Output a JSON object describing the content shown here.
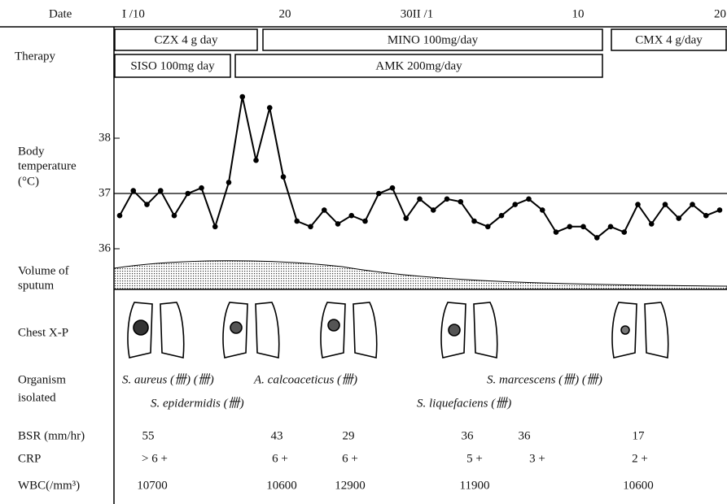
{
  "labels": {
    "date": "Date",
    "therapy": "Therapy",
    "body_temperature": [
      "Body",
      "temperature",
      "(°C)"
    ],
    "sputum": [
      "Volume of",
      "sputum"
    ],
    "chest": "Chest X-P",
    "organism": [
      "Organism",
      "isolated"
    ],
    "bsr": "BSR (mm/hr)",
    "crp": "CRP",
    "wbc": "WBC(/mm³)"
  },
  "dates": [
    "I /10",
    "20",
    "30II /1",
    "10",
    "20"
  ],
  "therapy": [
    "CZX 4 g day",
    "MINO 100mg/day",
    "CMX 4 g/day",
    "SISO 100mg day",
    "AMK 200mg/day"
  ],
  "organisms": [
    "S. aureus (卌) (卌)",
    "A. calcoaceticus (卌)",
    "S. marcescens (卌) (卌)",
    "S. epidermidis (卌)",
    "S. liquefaciens (卌)"
  ],
  "bsr": [
    55,
    43,
    29,
    36,
    36,
    17
  ],
  "crp": [
    "> 6 +",
    "6 +",
    "6 +",
    "5 +",
    "3 +",
    "2 +"
  ],
  "wbc": [
    10700,
    10600,
    12900,
    11900,
    10600
  ],
  "chart_data": {
    "type": "line",
    "categories": [
      null,
      null,
      null,
      null,
      null,
      null,
      null,
      null,
      null,
      null,
      null,
      null,
      null,
      null,
      null,
      null,
      null,
      null,
      null,
      null,
      null,
      null,
      null,
      null,
      null,
      null,
      null,
      null,
      null,
      null,
      null,
      null,
      null,
      null,
      null,
      null,
      null,
      null,
      null,
      null,
      null,
      null,
      null,
      null,
      null
    ],
    "series": [
      {
        "color": "#000000",
        "values": [
          36.6,
          37.05,
          36.8,
          37.05,
          36.6,
          37.0,
          37.1,
          36.4,
          37.2,
          38.75,
          37.6,
          38.55,
          37.3,
          36.5,
          36.4,
          36.7,
          36.45,
          36.6,
          36.5,
          37.0,
          37.1,
          36.55,
          36.9,
          36.7,
          36.9,
          36.85,
          36.5,
          36.4,
          36.6,
          36.8,
          36.9,
          36.7,
          36.3,
          36.4,
          36.4,
          36.2,
          36.4,
          36.3,
          36.8,
          36.45,
          36.8,
          36.55,
          36.8,
          36.6,
          36.7
        ]
      }
    ],
    "ylim": [
      35.7,
      39.0
    ],
    "yticks": [
      36,
      37,
      38
    ],
    "hline": 37
  }
}
